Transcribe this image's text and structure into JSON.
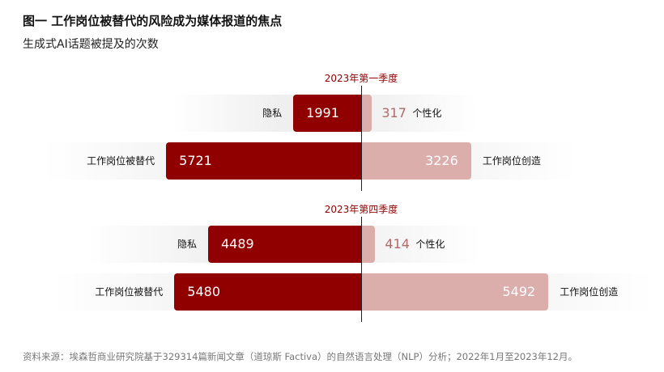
{
  "title": "图一  工作岗位被替代的风险成为媒体报道的焦点",
  "subtitle": "生成式AI话题被提及的次数",
  "source": "资料来源：埃森哲商业研究院基于329314篇新闻文章（道琼斯 Factiva）的自然语言处理（NLP）分析；2022年1月至2023年12月。",
  "colors": {
    "left": "#900000",
    "right": "#dbadab",
    "period": "#8f0000"
  },
  "chart_data": {
    "type": "bar",
    "orientation": "diverging-horizontal",
    "groups": [
      {
        "period": "2023年第一季度",
        "pairs": [
          {
            "left_label": "隐私",
            "left_value": 1991,
            "right_label": "个性化",
            "right_value": 317
          },
          {
            "left_label": "工作岗位被替代",
            "left_value": 5721,
            "right_label": "工作岗位创造",
            "right_value": 3226
          }
        ]
      },
      {
        "period": "2023年第四季度",
        "pairs": [
          {
            "left_label": "隐私",
            "left_value": 4489,
            "right_label": "个性化",
            "right_value": 414
          },
          {
            "left_label": "工作岗位被替代",
            "left_value": 5480,
            "right_label": "工作岗位创造",
            "right_value": 5492
          }
        ]
      }
    ]
  }
}
